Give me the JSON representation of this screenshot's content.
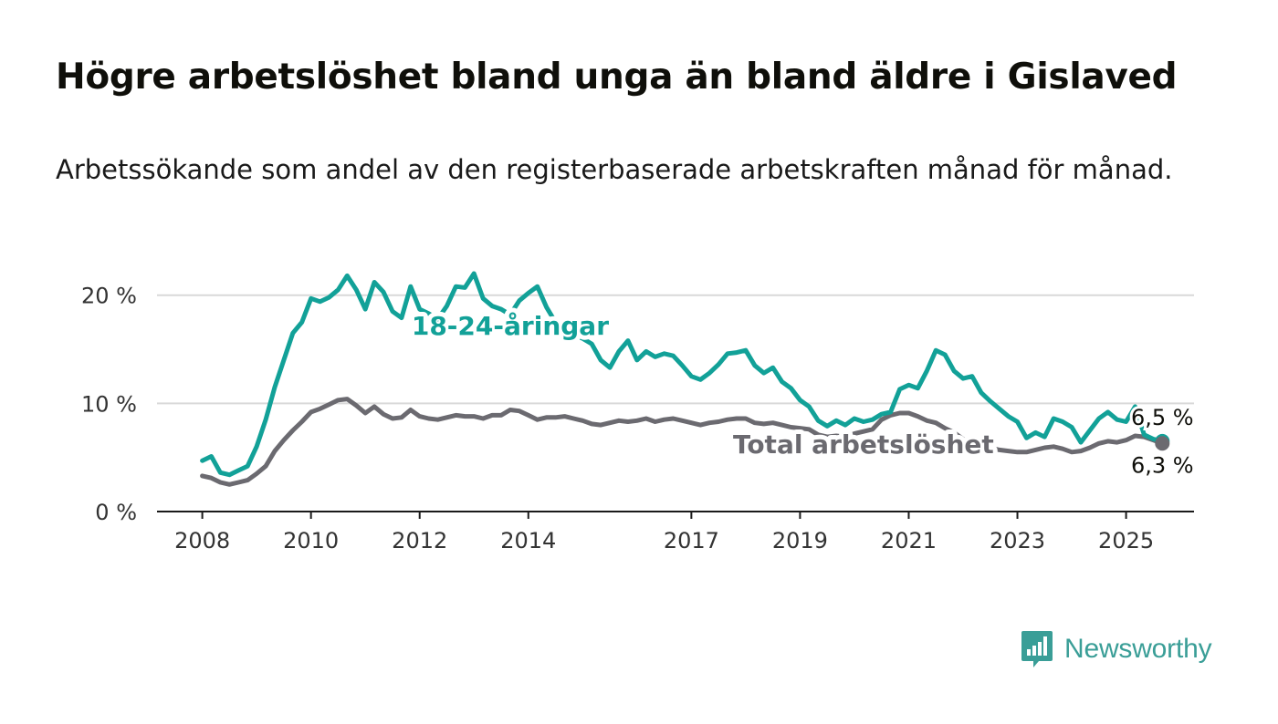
{
  "title": "Högre arbetslöshet bland unga än bland äldre i Gislaved",
  "subtitle": "Arbetssökande som andel av den registerbaserade arbetskraften månad för månad.",
  "brand": {
    "name": "Newsworthy",
    "icon": "newsworthy-logo-icon",
    "color": "#3a9e97"
  },
  "chart_data": {
    "type": "line",
    "xlabel": "",
    "ylabel": "",
    "x_ticks": [
      "2008",
      "2010",
      "2012",
      "2014",
      "2017",
      "2019",
      "2021",
      "2023",
      "2025"
    ],
    "y_ticks": [
      "0 %",
      "10 %",
      "20 %"
    ],
    "ylim": [
      0,
      22
    ],
    "xlim": [
      "2007-03",
      "2026-04"
    ],
    "grid": true,
    "series": [
      {
        "name": "18-24-åringar",
        "color": "#12a198",
        "end_label": "6,5 %",
        "points": [
          [
            "2008-01",
            4.7
          ],
          [
            "2008-03",
            5.1
          ],
          [
            "2008-05",
            3.6
          ],
          [
            "2008-07",
            3.4
          ],
          [
            "2008-09",
            3.8
          ],
          [
            "2008-11",
            4.2
          ],
          [
            "2009-01",
            6.0
          ],
          [
            "2009-03",
            8.5
          ],
          [
            "2009-05",
            11.5
          ],
          [
            "2009-07",
            14.0
          ],
          [
            "2009-09",
            16.5
          ],
          [
            "2009-11",
            17.5
          ],
          [
            "2010-01",
            19.7
          ],
          [
            "2010-03",
            19.4
          ],
          [
            "2010-05",
            19.8
          ],
          [
            "2010-07",
            20.5
          ],
          [
            "2010-09",
            21.8
          ],
          [
            "2010-11",
            20.5
          ],
          [
            "2011-01",
            18.7
          ],
          [
            "2011-03",
            21.2
          ],
          [
            "2011-05",
            20.3
          ],
          [
            "2011-07",
            18.5
          ],
          [
            "2011-09",
            17.9
          ],
          [
            "2011-11",
            20.8
          ],
          [
            "2012-01",
            18.7
          ],
          [
            "2012-03",
            18.3
          ],
          [
            "2012-05",
            17.8
          ],
          [
            "2012-07",
            19.0
          ],
          [
            "2012-09",
            20.8
          ],
          [
            "2012-11",
            20.7
          ],
          [
            "2013-01",
            22.0
          ],
          [
            "2013-03",
            19.7
          ],
          [
            "2013-05",
            19.0
          ],
          [
            "2013-07",
            18.7
          ],
          [
            "2013-09",
            18.2
          ],
          [
            "2013-11",
            19.5
          ],
          [
            "2014-01",
            20.2
          ],
          [
            "2014-03",
            20.8
          ],
          [
            "2014-05",
            18.9
          ],
          [
            "2014-07",
            17.5
          ],
          [
            "2014-09",
            16.8
          ],
          [
            "2014-11",
            16.3
          ],
          [
            "2015-01",
            16.0
          ],
          [
            "2015-03",
            15.5
          ],
          [
            "2015-05",
            14.0
          ],
          [
            "2015-07",
            13.3
          ],
          [
            "2015-09",
            14.8
          ],
          [
            "2015-11",
            15.8
          ],
          [
            "2016-01",
            14.0
          ],
          [
            "2016-03",
            14.8
          ],
          [
            "2016-05",
            14.3
          ],
          [
            "2016-07",
            14.6
          ],
          [
            "2016-09",
            14.4
          ],
          [
            "2016-11",
            13.5
          ],
          [
            "2017-01",
            12.5
          ],
          [
            "2017-03",
            12.2
          ],
          [
            "2017-05",
            12.8
          ],
          [
            "2017-07",
            13.6
          ],
          [
            "2017-09",
            14.6
          ],
          [
            "2017-11",
            14.7
          ],
          [
            "2018-01",
            14.9
          ],
          [
            "2018-03",
            13.5
          ],
          [
            "2018-05",
            12.8
          ],
          [
            "2018-07",
            13.3
          ],
          [
            "2018-09",
            12.0
          ],
          [
            "2018-11",
            11.4
          ],
          [
            "2019-01",
            10.3
          ],
          [
            "2019-03",
            9.7
          ],
          [
            "2019-05",
            8.4
          ],
          [
            "2019-07",
            7.9
          ],
          [
            "2019-09",
            8.4
          ],
          [
            "2019-11",
            8.0
          ],
          [
            "2020-01",
            8.6
          ],
          [
            "2020-03",
            8.3
          ],
          [
            "2020-05",
            8.5
          ],
          [
            "2020-07",
            9.0
          ],
          [
            "2020-09",
            9.2
          ],
          [
            "2020-11",
            11.3
          ],
          [
            "2021-01",
            11.7
          ],
          [
            "2021-03",
            11.4
          ],
          [
            "2021-05",
            13.0
          ],
          [
            "2021-07",
            14.9
          ],
          [
            "2021-09",
            14.5
          ],
          [
            "2021-11",
            13.0
          ],
          [
            "2022-01",
            12.3
          ],
          [
            "2022-03",
            12.5
          ],
          [
            "2022-05",
            11.0
          ],
          [
            "2022-07",
            10.2
          ],
          [
            "2022-09",
            9.5
          ],
          [
            "2022-11",
            8.8
          ],
          [
            "2023-01",
            8.3
          ],
          [
            "2023-03",
            6.8
          ],
          [
            "2023-05",
            7.3
          ],
          [
            "2023-07",
            6.9
          ],
          [
            "2023-09",
            8.6
          ],
          [
            "2023-11",
            8.3
          ],
          [
            "2024-01",
            7.8
          ],
          [
            "2024-03",
            6.4
          ],
          [
            "2024-05",
            7.5
          ],
          [
            "2024-07",
            8.6
          ],
          [
            "2024-09",
            9.2
          ],
          [
            "2024-11",
            8.5
          ],
          [
            "2025-01",
            8.3
          ],
          [
            "2025-03",
            9.7
          ],
          [
            "2025-05",
            7.1
          ],
          [
            "2025-07",
            6.7
          ],
          [
            "2025-09",
            6.5
          ]
        ]
      },
      {
        "name": "Total arbetslöshet",
        "color": "#6b6a70",
        "end_label": "6,3 %",
        "points": [
          [
            "2008-01",
            3.3
          ],
          [
            "2008-03",
            3.1
          ],
          [
            "2008-05",
            2.7
          ],
          [
            "2008-07",
            2.5
          ],
          [
            "2008-09",
            2.7
          ],
          [
            "2008-11",
            2.9
          ],
          [
            "2009-01",
            3.5
          ],
          [
            "2009-03",
            4.2
          ],
          [
            "2009-05",
            5.6
          ],
          [
            "2009-07",
            6.6
          ],
          [
            "2009-09",
            7.5
          ],
          [
            "2009-11",
            8.3
          ],
          [
            "2010-01",
            9.2
          ],
          [
            "2010-03",
            9.5
          ],
          [
            "2010-05",
            9.9
          ],
          [
            "2010-07",
            10.3
          ],
          [
            "2010-09",
            10.4
          ],
          [
            "2010-11",
            9.8
          ],
          [
            "2011-01",
            9.1
          ],
          [
            "2011-03",
            9.7
          ],
          [
            "2011-05",
            9.0
          ],
          [
            "2011-07",
            8.6
          ],
          [
            "2011-09",
            8.7
          ],
          [
            "2011-11",
            9.4
          ],
          [
            "2012-01",
            8.8
          ],
          [
            "2012-03",
            8.6
          ],
          [
            "2012-05",
            8.5
          ],
          [
            "2012-07",
            8.7
          ],
          [
            "2012-09",
            8.9
          ],
          [
            "2012-11",
            8.8
          ],
          [
            "2013-01",
            8.8
          ],
          [
            "2013-03",
            8.6
          ],
          [
            "2013-05",
            8.9
          ],
          [
            "2013-07",
            8.9
          ],
          [
            "2013-09",
            9.4
          ],
          [
            "2013-11",
            9.3
          ],
          [
            "2014-01",
            8.9
          ],
          [
            "2014-03",
            8.5
          ],
          [
            "2014-05",
            8.7
          ],
          [
            "2014-07",
            8.7
          ],
          [
            "2014-09",
            8.8
          ],
          [
            "2014-11",
            8.6
          ],
          [
            "2015-01",
            8.4
          ],
          [
            "2015-03",
            8.1
          ],
          [
            "2015-05",
            8.0
          ],
          [
            "2015-07",
            8.2
          ],
          [
            "2015-09",
            8.4
          ],
          [
            "2015-11",
            8.3
          ],
          [
            "2016-01",
            8.4
          ],
          [
            "2016-03",
            8.6
          ],
          [
            "2016-05",
            8.3
          ],
          [
            "2016-07",
            8.5
          ],
          [
            "2016-09",
            8.6
          ],
          [
            "2016-11",
            8.4
          ],
          [
            "2017-01",
            8.2
          ],
          [
            "2017-03",
            8.0
          ],
          [
            "2017-05",
            8.2
          ],
          [
            "2017-07",
            8.3
          ],
          [
            "2017-09",
            8.5
          ],
          [
            "2017-11",
            8.6
          ],
          [
            "2018-01",
            8.6
          ],
          [
            "2018-03",
            8.2
          ],
          [
            "2018-05",
            8.1
          ],
          [
            "2018-07",
            8.2
          ],
          [
            "2018-09",
            8.0
          ],
          [
            "2018-11",
            7.8
          ],
          [
            "2019-01",
            7.7
          ],
          [
            "2019-03",
            7.6
          ],
          [
            "2019-05",
            7.1
          ],
          [
            "2019-07",
            6.9
          ],
          [
            "2019-09",
            7.0
          ],
          [
            "2019-11",
            6.9
          ],
          [
            "2020-01",
            7.2
          ],
          [
            "2020-03",
            7.4
          ],
          [
            "2020-05",
            7.6
          ],
          [
            "2020-07",
            8.5
          ],
          [
            "2020-09",
            8.9
          ],
          [
            "2020-11",
            9.1
          ],
          [
            "2021-01",
            9.1
          ],
          [
            "2021-03",
            8.8
          ],
          [
            "2021-05",
            8.4
          ],
          [
            "2021-07",
            8.2
          ],
          [
            "2021-09",
            7.7
          ],
          [
            "2021-11",
            7.3
          ],
          [
            "2022-01",
            6.7
          ],
          [
            "2022-03",
            6.2
          ],
          [
            "2022-05",
            6.0
          ],
          [
            "2022-07",
            5.9
          ],
          [
            "2022-09",
            5.7
          ],
          [
            "2022-11",
            5.6
          ],
          [
            "2023-01",
            5.5
          ],
          [
            "2023-03",
            5.5
          ],
          [
            "2023-05",
            5.7
          ],
          [
            "2023-07",
            5.9
          ],
          [
            "2023-09",
            6.0
          ],
          [
            "2023-11",
            5.8
          ],
          [
            "2024-01",
            5.5
          ],
          [
            "2024-03",
            5.6
          ],
          [
            "2024-05",
            5.9
          ],
          [
            "2024-07",
            6.3
          ],
          [
            "2024-09",
            6.5
          ],
          [
            "2024-11",
            6.4
          ],
          [
            "2025-01",
            6.6
          ],
          [
            "2025-03",
            7.0
          ],
          [
            "2025-05",
            6.9
          ],
          [
            "2025-07",
            6.6
          ],
          [
            "2025-09",
            6.3
          ]
        ]
      }
    ],
    "annotations": [
      {
        "text": "18-24-åringar",
        "series": "18-24-åringar",
        "at": "2013-09"
      },
      {
        "text": "Total arbetslöshet",
        "series": "Total arbetslöshet",
        "at": "2020-03"
      }
    ]
  }
}
